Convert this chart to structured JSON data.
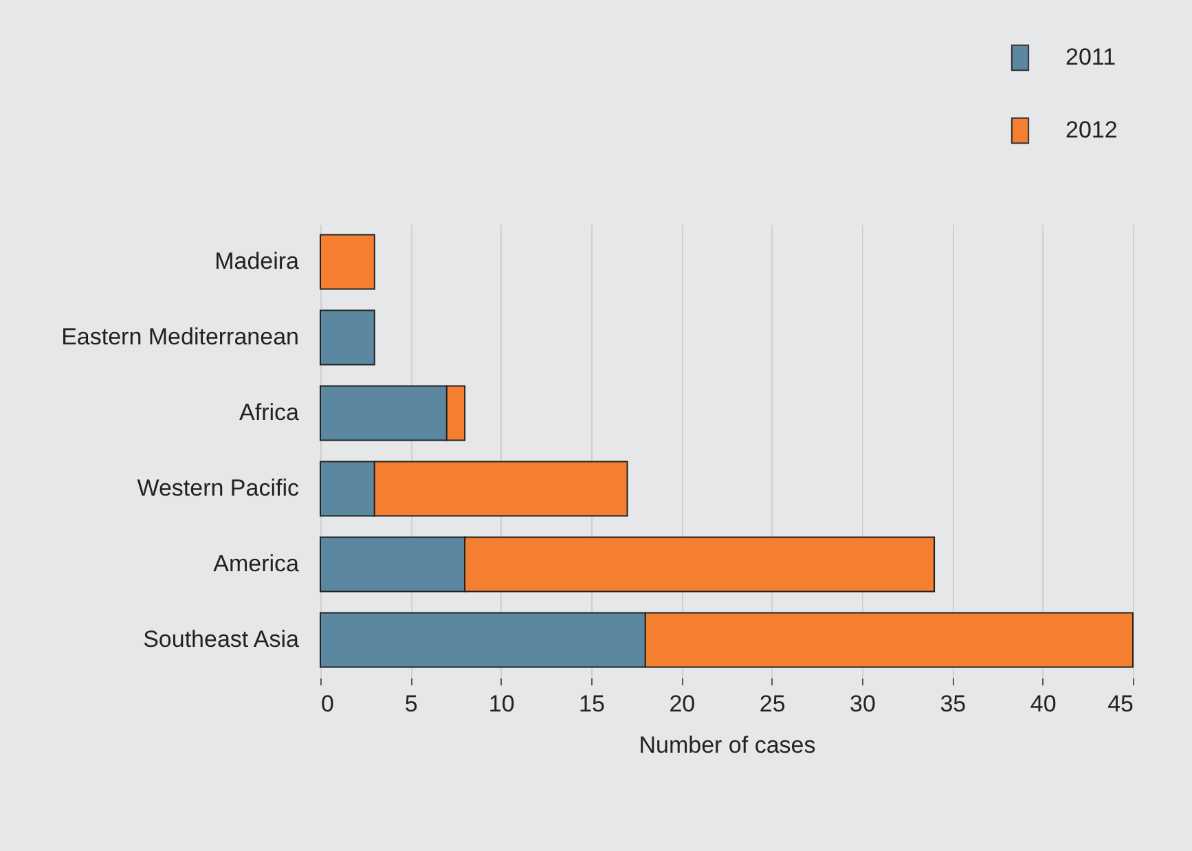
{
  "chart_data": {
    "type": "bar",
    "orientation": "horizontal",
    "stacked": true,
    "xlabel": "Number of cases",
    "categories": [
      "Madeira",
      "Eastern Mediterranean",
      "Africa",
      "Western Pacific",
      "America",
      "Southeast Asia"
    ],
    "series": [
      {
        "name": "2011",
        "color": "#5b87a1",
        "values": [
          null,
          3,
          7,
          3,
          8,
          18
        ]
      },
      {
        "name": "2012",
        "color": "#f47f31",
        "values": [
          3,
          null,
          1,
          14,
          26,
          27
        ]
      }
    ],
    "xlim": [
      0,
      45
    ],
    "xticks": [
      0,
      5,
      10,
      15,
      20,
      25,
      30,
      35,
      40,
      45
    ],
    "grid": "x",
    "legend": "top right"
  }
}
